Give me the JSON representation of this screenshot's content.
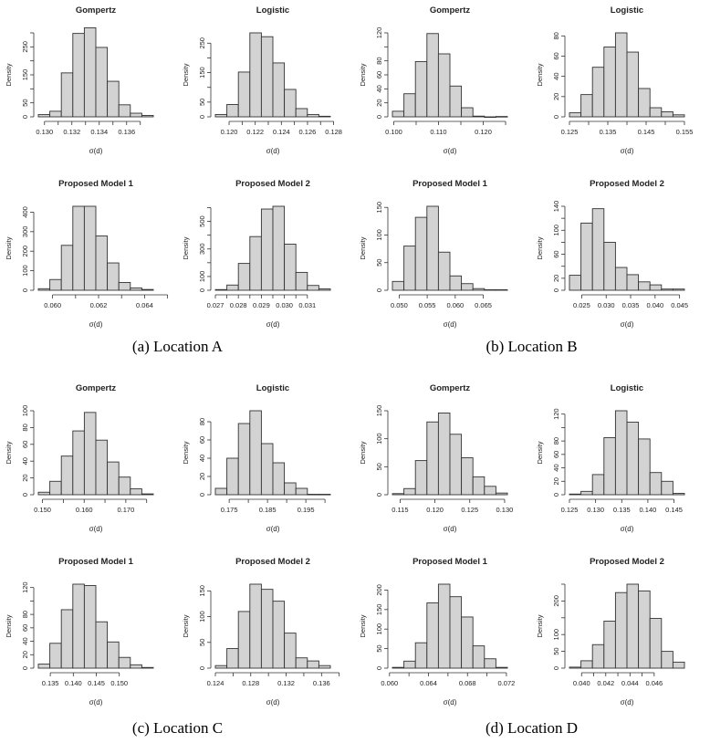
{
  "captions": [
    "(a)  Location A",
    "(b)  Location B",
    "(c)  Location C",
    "(d)  Location D"
  ],
  "chart_data": [
    {
      "type": "bar",
      "location": "A",
      "title": "Gompertz",
      "xlabel": "σ(d)",
      "ylabel": "Density",
      "bin_start": 0.12955,
      "bin_width": 0.00084,
      "values": [
        8,
        20,
        157,
        298,
        318,
        248,
        127,
        43,
        13,
        5
      ],
      "xticks": [
        0.13,
        0.131,
        0.132,
        0.133,
        0.134,
        0.135,
        0.136,
        0.137
      ],
      "xticklabels": [
        "0.130",
        "",
        "0.132",
        "",
        "0.134",
        "",
        "0.136",
        ""
      ],
      "yticks": [
        0,
        50,
        100,
        150,
        200,
        250,
        300
      ],
      "yticklabels": [
        "0",
        "50",
        "",
        "150",
        "",
        "250",
        ""
      ],
      "ylim": [
        0,
        300
      ]
    },
    {
      "type": "bar",
      "location": "A",
      "title": "Logistic",
      "xlabel": "σ(d)",
      "ylabel": "Density",
      "bin_start": 0.11895,
      "bin_width": 0.00088,
      "values": [
        8,
        42,
        152,
        285,
        272,
        183,
        93,
        28,
        8,
        2
      ],
      "xticks": [
        0.12,
        0.121,
        0.122,
        0.123,
        0.124,
        0.125,
        0.126,
        0.127,
        0.128
      ],
      "xticklabels": [
        "0.120",
        "",
        "0.122",
        "",
        "0.124",
        "",
        "0.126",
        "",
        "0.128"
      ],
      "yticks": [
        0,
        50,
        100,
        150,
        200,
        250
      ],
      "yticklabels": [
        "0",
        "50",
        "",
        "150",
        "",
        "250"
      ],
      "ylim": [
        0,
        285
      ]
    },
    {
      "type": "bar",
      "location": "A",
      "title": "Proposed Model 1",
      "xlabel": "σ(d)",
      "ylabel": "Density",
      "bin_start": 0.05938,
      "bin_width": 0.0005,
      "values": [
        8,
        55,
        230,
        430,
        430,
        278,
        140,
        40,
        12,
        4
      ],
      "xticks": [
        0.06,
        0.061,
        0.062,
        0.063,
        0.064,
        0.065
      ],
      "xticklabels": [
        "0.060",
        "",
        "0.062",
        "",
        "0.064",
        ""
      ],
      "yticks": [
        0,
        100,
        200,
        300,
        400
      ],
      "yticklabels": [
        "0",
        "100",
        "200",
        "300",
        "400"
      ],
      "ylim": [
        0,
        430
      ]
    },
    {
      "type": "bar",
      "location": "A",
      "title": "Proposed Model 2",
      "xlabel": "σ(d)",
      "ylabel": "Density",
      "bin_start": 0.027,
      "bin_width": 0.0005,
      "values": [
        5,
        38,
        195,
        390,
        590,
        610,
        335,
        130,
        35,
        10
      ],
      "xticks": [
        0.027,
        0.0275,
        0.028,
        0.0285,
        0.029,
        0.0295,
        0.03,
        0.0305,
        0.031
      ],
      "xticklabels": [
        "0.027",
        "",
        "0.028",
        "",
        "0.029",
        "",
        "0.030",
        "",
        "0.031"
      ],
      "yticks": [
        0,
        100,
        200,
        300,
        400,
        500,
        600
      ],
      "yticklabels": [
        "0",
        "100",
        "",
        "300",
        "",
        "500",
        ""
      ],
      "ylim": [
        0,
        610
      ]
    },
    {
      "type": "bar",
      "location": "B",
      "title": "Gompertz",
      "xlabel": "σ(d)",
      "ylabel": "Density",
      "bin_start": 0.0997,
      "bin_width": 0.00257,
      "values": [
        8,
        33,
        79,
        119,
        90,
        44,
        13,
        1,
        0,
        0.5
      ],
      "xticks": [
        0.1,
        0.105,
        0.11,
        0.115,
        0.12,
        0.125
      ],
      "xticklabels": [
        "0.100",
        "",
        "0.110",
        "",
        "0.120",
        ""
      ],
      "yticks": [
        0,
        20,
        40,
        60,
        80,
        100,
        120
      ],
      "yticklabels": [
        "0",
        "20",
        "40",
        "60",
        "80",
        "",
        "120"
      ],
      "ylim": [
        0,
        120
      ]
    },
    {
      "type": "bar",
      "location": "B",
      "title": "Logistic",
      "xlabel": "σ(d)",
      "ylabel": "Density",
      "bin_start": 0.125,
      "bin_width": 0.003,
      "values": [
        4,
        22,
        49,
        69,
        83,
        64,
        28,
        9,
        5,
        2
      ],
      "xticks": [
        0.125,
        0.13,
        0.135,
        0.14,
        0.145,
        0.15,
        0.155
      ],
      "xticklabels": [
        "0.125",
        "",
        "0.135",
        "",
        "0.145",
        "",
        "0.155"
      ],
      "yticks": [
        0,
        20,
        40,
        60,
        80
      ],
      "yticklabels": [
        "0",
        "20",
        "40",
        "60",
        "80"
      ],
      "ylim": [
        0,
        83
      ]
    },
    {
      "type": "bar",
      "location": "B",
      "title": "Proposed Model 1",
      "xlabel": "σ(d)",
      "ylabel": "Density",
      "bin_start": 0.0488,
      "bin_width": 0.00205,
      "values": [
        16,
        80,
        132,
        152,
        69,
        26,
        12,
        3,
        1,
        1
      ],
      "xticks": [
        0.05,
        0.055,
        0.06,
        0.065
      ],
      "xticklabels": [
        "0.050",
        "0.055",
        "0.060",
        "0.065"
      ],
      "yticks": [
        0,
        50,
        100,
        150
      ],
      "yticklabels": [
        "0",
        "50",
        "100",
        "150"
      ],
      "ylim": [
        0,
        152
      ]
    },
    {
      "type": "bar",
      "location": "B",
      "title": "Proposed Model 2",
      "xlabel": "σ(d)",
      "ylabel": "Density",
      "bin_start": 0.0225,
      "bin_width": 0.00235,
      "values": [
        25,
        112,
        136,
        80,
        38,
        26,
        14,
        9,
        2,
        2
      ],
      "xticks": [
        0.025,
        0.03,
        0.035,
        0.04,
        0.045
      ],
      "xticklabels": [
        "0.025",
        "0.030",
        "0.035",
        "0.040",
        "0.045"
      ],
      "yticks": [
        0,
        20,
        40,
        60,
        80,
        100,
        120,
        140
      ],
      "yticklabels": [
        "0",
        "20",
        "",
        "60",
        "",
        "100",
        "",
        "140"
      ],
      "ylim": [
        0,
        140
      ]
    },
    {
      "type": "bar",
      "location": "C",
      "title": "Gompertz",
      "xlabel": "σ(d)",
      "ylabel": "Density",
      "bin_start": 0.149,
      "bin_width": 0.00276,
      "values": [
        3,
        16,
        46,
        76,
        98,
        65,
        39,
        21,
        7,
        1
      ],
      "xticks": [
        0.15,
        0.155,
        0.16,
        0.165,
        0.17,
        0.175
      ],
      "xticklabels": [
        "0.150",
        "",
        "0.160",
        "",
        "0.170",
        ""
      ],
      "yticks": [
        0,
        20,
        40,
        60,
        80,
        100
      ],
      "yticklabels": [
        "0",
        "20",
        "40",
        "60",
        "80",
        "100"
      ],
      "ylim": [
        0,
        100
      ]
    },
    {
      "type": "bar",
      "location": "C",
      "title": "Logistic",
      "xlabel": "σ(d)",
      "ylabel": "Density",
      "bin_start": 0.1714,
      "bin_width": 0.003,
      "values": [
        7,
        40,
        78,
        92,
        56,
        35,
        13,
        7,
        0.5,
        0.5
      ],
      "xticks": [
        0.175,
        0.18,
        0.185,
        0.19,
        0.195,
        0.2
      ],
      "xticklabels": [
        "0.175",
        "",
        "0.185",
        "",
        "0.195",
        ""
      ],
      "yticks": [
        0,
        20,
        40,
        60,
        80
      ],
      "yticklabels": [
        "0",
        "20",
        "40",
        "60",
        "80"
      ],
      "ylim": [
        0,
        92
      ]
    },
    {
      "type": "bar",
      "location": "C",
      "title": "Proposed Model 1",
      "xlabel": "σ(d)",
      "ylabel": "Density",
      "bin_start": 0.1324,
      "bin_width": 0.0025,
      "values": [
        6,
        37,
        87,
        125,
        123,
        69,
        39,
        16,
        5,
        1
      ],
      "xticks": [
        0.135,
        0.14,
        0.145,
        0.15
      ],
      "xticklabels": [
        "0.135",
        "0.140",
        "0.145",
        "0.150"
      ],
      "yticks": [
        0,
        20,
        40,
        60,
        80,
        100,
        120
      ],
      "yticklabels": [
        "0",
        "20",
        "40",
        "60",
        "80",
        "",
        "120"
      ],
      "ylim": [
        0,
        125
      ]
    },
    {
      "type": "bar",
      "location": "C",
      "title": "Proposed Model 2",
      "xlabel": "σ(d)",
      "ylabel": "Density",
      "bin_start": 0.124,
      "bin_width": 0.0013,
      "values": [
        5,
        38,
        110,
        163,
        153,
        130,
        68,
        20,
        14,
        5
      ],
      "xticks": [
        0.124,
        0.126,
        0.128,
        0.13,
        0.132,
        0.134,
        0.136,
        0.138
      ],
      "xticklabels": [
        "0.124",
        "",
        "0.128",
        "",
        "0.132",
        "",
        "0.136",
        ""
      ],
      "yticks": [
        0,
        50,
        100,
        150
      ],
      "yticklabels": [
        "0",
        "50",
        "100",
        "150"
      ],
      "ylim": [
        0,
        163
      ]
    },
    {
      "type": "bar",
      "location": "D",
      "title": "Gompertz",
      "xlabel": "σ(d)",
      "ylabel": "Density",
      "bin_start": 0.1139,
      "bin_width": 0.00165,
      "values": [
        2,
        11,
        61,
        130,
        146,
        108,
        66,
        32,
        15,
        3
      ],
      "xticks": [
        0.115,
        0.12,
        0.125,
        0.13
      ],
      "xticklabels": [
        "0.115",
        "0.120",
        "0.125",
        "0.130"
      ],
      "yticks": [
        0,
        50,
        100,
        150
      ],
      "yticklabels": [
        "0",
        "50",
        "100",
        "150"
      ],
      "ylim": [
        0,
        150
      ]
    },
    {
      "type": "bar",
      "location": "D",
      "title": "Logistic",
      "xlabel": "σ(d)",
      "ylabel": "Density",
      "bin_start": 0.125,
      "bin_width": 0.0022,
      "values": [
        1,
        5,
        30,
        85,
        125,
        108,
        83,
        33,
        20,
        2
      ],
      "xticks": [
        0.125,
        0.13,
        0.135,
        0.14,
        0.145
      ],
      "xticklabels": [
        "0.125",
        "0.130",
        "0.135",
        "0.140",
        "0.145"
      ],
      "yticks": [
        0,
        20,
        40,
        60,
        80,
        100,
        120
      ],
      "yticklabels": [
        "0",
        "20",
        "40",
        "60",
        "80",
        "",
        "120"
      ],
      "ylim": [
        0,
        125
      ]
    },
    {
      "type": "bar",
      "location": "D",
      "title": "Proposed Model 1",
      "xlabel": "σ(d)",
      "ylabel": "Density",
      "bin_start": 0.0603,
      "bin_width": 0.00118,
      "values": [
        2,
        18,
        65,
        167,
        215,
        183,
        131,
        57,
        24,
        2
      ],
      "xticks": [
        0.06,
        0.062,
        0.064,
        0.066,
        0.068,
        0.07,
        0.072
      ],
      "xticklabels": [
        "0.060",
        "",
        "0.064",
        "",
        "0.068",
        "",
        "0.072"
      ],
      "yticks": [
        0,
        50,
        100,
        150,
        200
      ],
      "yticklabels": [
        "0",
        "50",
        "100",
        "150",
        "200"
      ],
      "ylim": [
        0,
        215
      ]
    },
    {
      "type": "bar",
      "location": "D",
      "title": "Proposed Model 2",
      "xlabel": "σ(d)",
      "ylabel": "Density",
      "bin_start": 0.039,
      "bin_width": 0.00095,
      "values": [
        3,
        22,
        70,
        140,
        225,
        250,
        230,
        148,
        50,
        18
      ],
      "xticks": [
        0.04,
        0.041,
        0.042,
        0.043,
        0.044,
        0.045,
        0.046
      ],
      "xticklabels": [
        "0.040",
        "",
        "0.042",
        "",
        "0.044",
        "",
        "0.046"
      ],
      "yticks": [
        0,
        50,
        100,
        150,
        200,
        250
      ],
      "yticklabels": [
        "0",
        "50",
        "100",
        "",
        "200",
        ""
      ],
      "ylim": [
        0,
        250
      ]
    }
  ]
}
